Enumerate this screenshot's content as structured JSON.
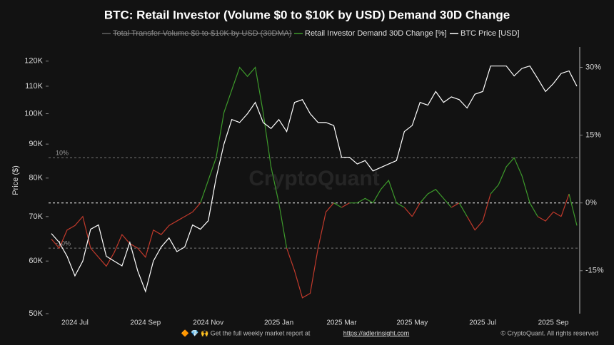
{
  "chart_data": {
    "type": "line",
    "title": "BTC: Retail Investor (Volume $0 to $10K by USD) Demand 30D Change",
    "disabled_series": [
      "Total Transfer Volume $0 to $10K by USD (30DMA)"
    ],
    "y_label": "Price ($)",
    "watermark": "CryptoQuant",
    "log_y": true,
    "categories": [
      null,
      null,
      null,
      "2024 Jul",
      null,
      null,
      null,
      null,
      null,
      null,
      null,
      null,
      "2024 Sep",
      null,
      null,
      null,
      null,
      null,
      null,
      null,
      "2024 Nov",
      null,
      null,
      null,
      null,
      null,
      null,
      null,
      null,
      "2025 Jan",
      null,
      null,
      null,
      null,
      null,
      null,
      null,
      "2025 Mar",
      null,
      null,
      null,
      null,
      null,
      null,
      null,
      null,
      "2025 May",
      null,
      null,
      null,
      null,
      null,
      null,
      null,
      null,
      "2025 Jul",
      null,
      null,
      null,
      null,
      null,
      null,
      null,
      null,
      "2025 Sep",
      null,
      null,
      null
    ],
    "series": [
      {
        "name": "Retail Investor Demand 30D Change [%]",
        "axis": "y2",
        "color": "#3d9a2b",
        "negative_color": "#c0392b",
        "values": [
          -8,
          -10,
          -6,
          -5,
          -3,
          -10,
          -12,
          -14,
          -11,
          -7,
          -9,
          -10,
          -12,
          -6,
          -7,
          -5,
          -4,
          -3,
          -2,
          0,
          5,
          10,
          20,
          25,
          30,
          28,
          30,
          20,
          8,
          0,
          -10,
          -15,
          -21,
          -20,
          -10,
          -2,
          0,
          -1,
          0,
          0,
          1,
          0,
          3,
          5,
          0,
          -1,
          -3,
          0,
          2,
          3,
          1,
          -1,
          0,
          -3,
          -6,
          -4,
          2,
          4,
          8,
          10,
          6,
          0,
          -3,
          -4,
          -2,
          -3,
          2,
          -5
        ]
      },
      {
        "name": "BTC Price [USD]",
        "axis": "y",
        "color": "#ffffff",
        "values": [
          66000,
          64000,
          61000,
          57000,
          60000,
          67000,
          68000,
          61000,
          60000,
          59000,
          64000,
          58000,
          54000,
          60000,
          63000,
          65000,
          62000,
          63000,
          68000,
          67000,
          69000,
          80000,
          90000,
          98000,
          97000,
          100000,
          104000,
          97000,
          95000,
          98000,
          94000,
          104000,
          105000,
          100000,
          97000,
          97000,
          96000,
          86000,
          86000,
          84000,
          85000,
          82000,
          83000,
          84000,
          85000,
          94000,
          96000,
          104000,
          103000,
          108000,
          104000,
          106000,
          105000,
          102000,
          107000,
          108000,
          118000,
          118000,
          118000,
          114000,
          117000,
          118000,
          113000,
          108000,
          111000,
          115000,
          116000,
          110000
        ]
      }
    ],
    "ylim": [
      50000,
      126000
    ],
    "yticks": [
      {
        "value": 50000,
        "label": "50K"
      },
      {
        "value": 60000,
        "label": "60K"
      },
      {
        "value": 70000,
        "label": "70K"
      },
      {
        "value": 80000,
        "label": "80K"
      },
      {
        "value": 90000,
        "label": "90K"
      },
      {
        "value": 100000,
        "label": "100K"
      },
      {
        "value": 110000,
        "label": "110K"
      },
      {
        "value": 120000,
        "label": "120K"
      }
    ],
    "y2lim": [
      -24.5,
      34.5
    ],
    "y2ticks": [
      {
        "value": -15,
        "label": "-15%"
      },
      {
        "value": 0,
        "label": "0%"
      },
      {
        "value": 15,
        "label": "15%"
      },
      {
        "value": 30,
        "label": "30%"
      }
    ],
    "reference_lines": [
      {
        "value": 10,
        "label": "10%"
      },
      {
        "value": 0
      },
      {
        "value": -10,
        "label": "-10%"
      }
    ],
    "footer": {
      "text": "🔶 💎 🙌 Get the full weekly market report at ",
      "link": "https://adlerinsight.com"
    },
    "copyright": "© CryptoQuant. All rights reserved"
  }
}
